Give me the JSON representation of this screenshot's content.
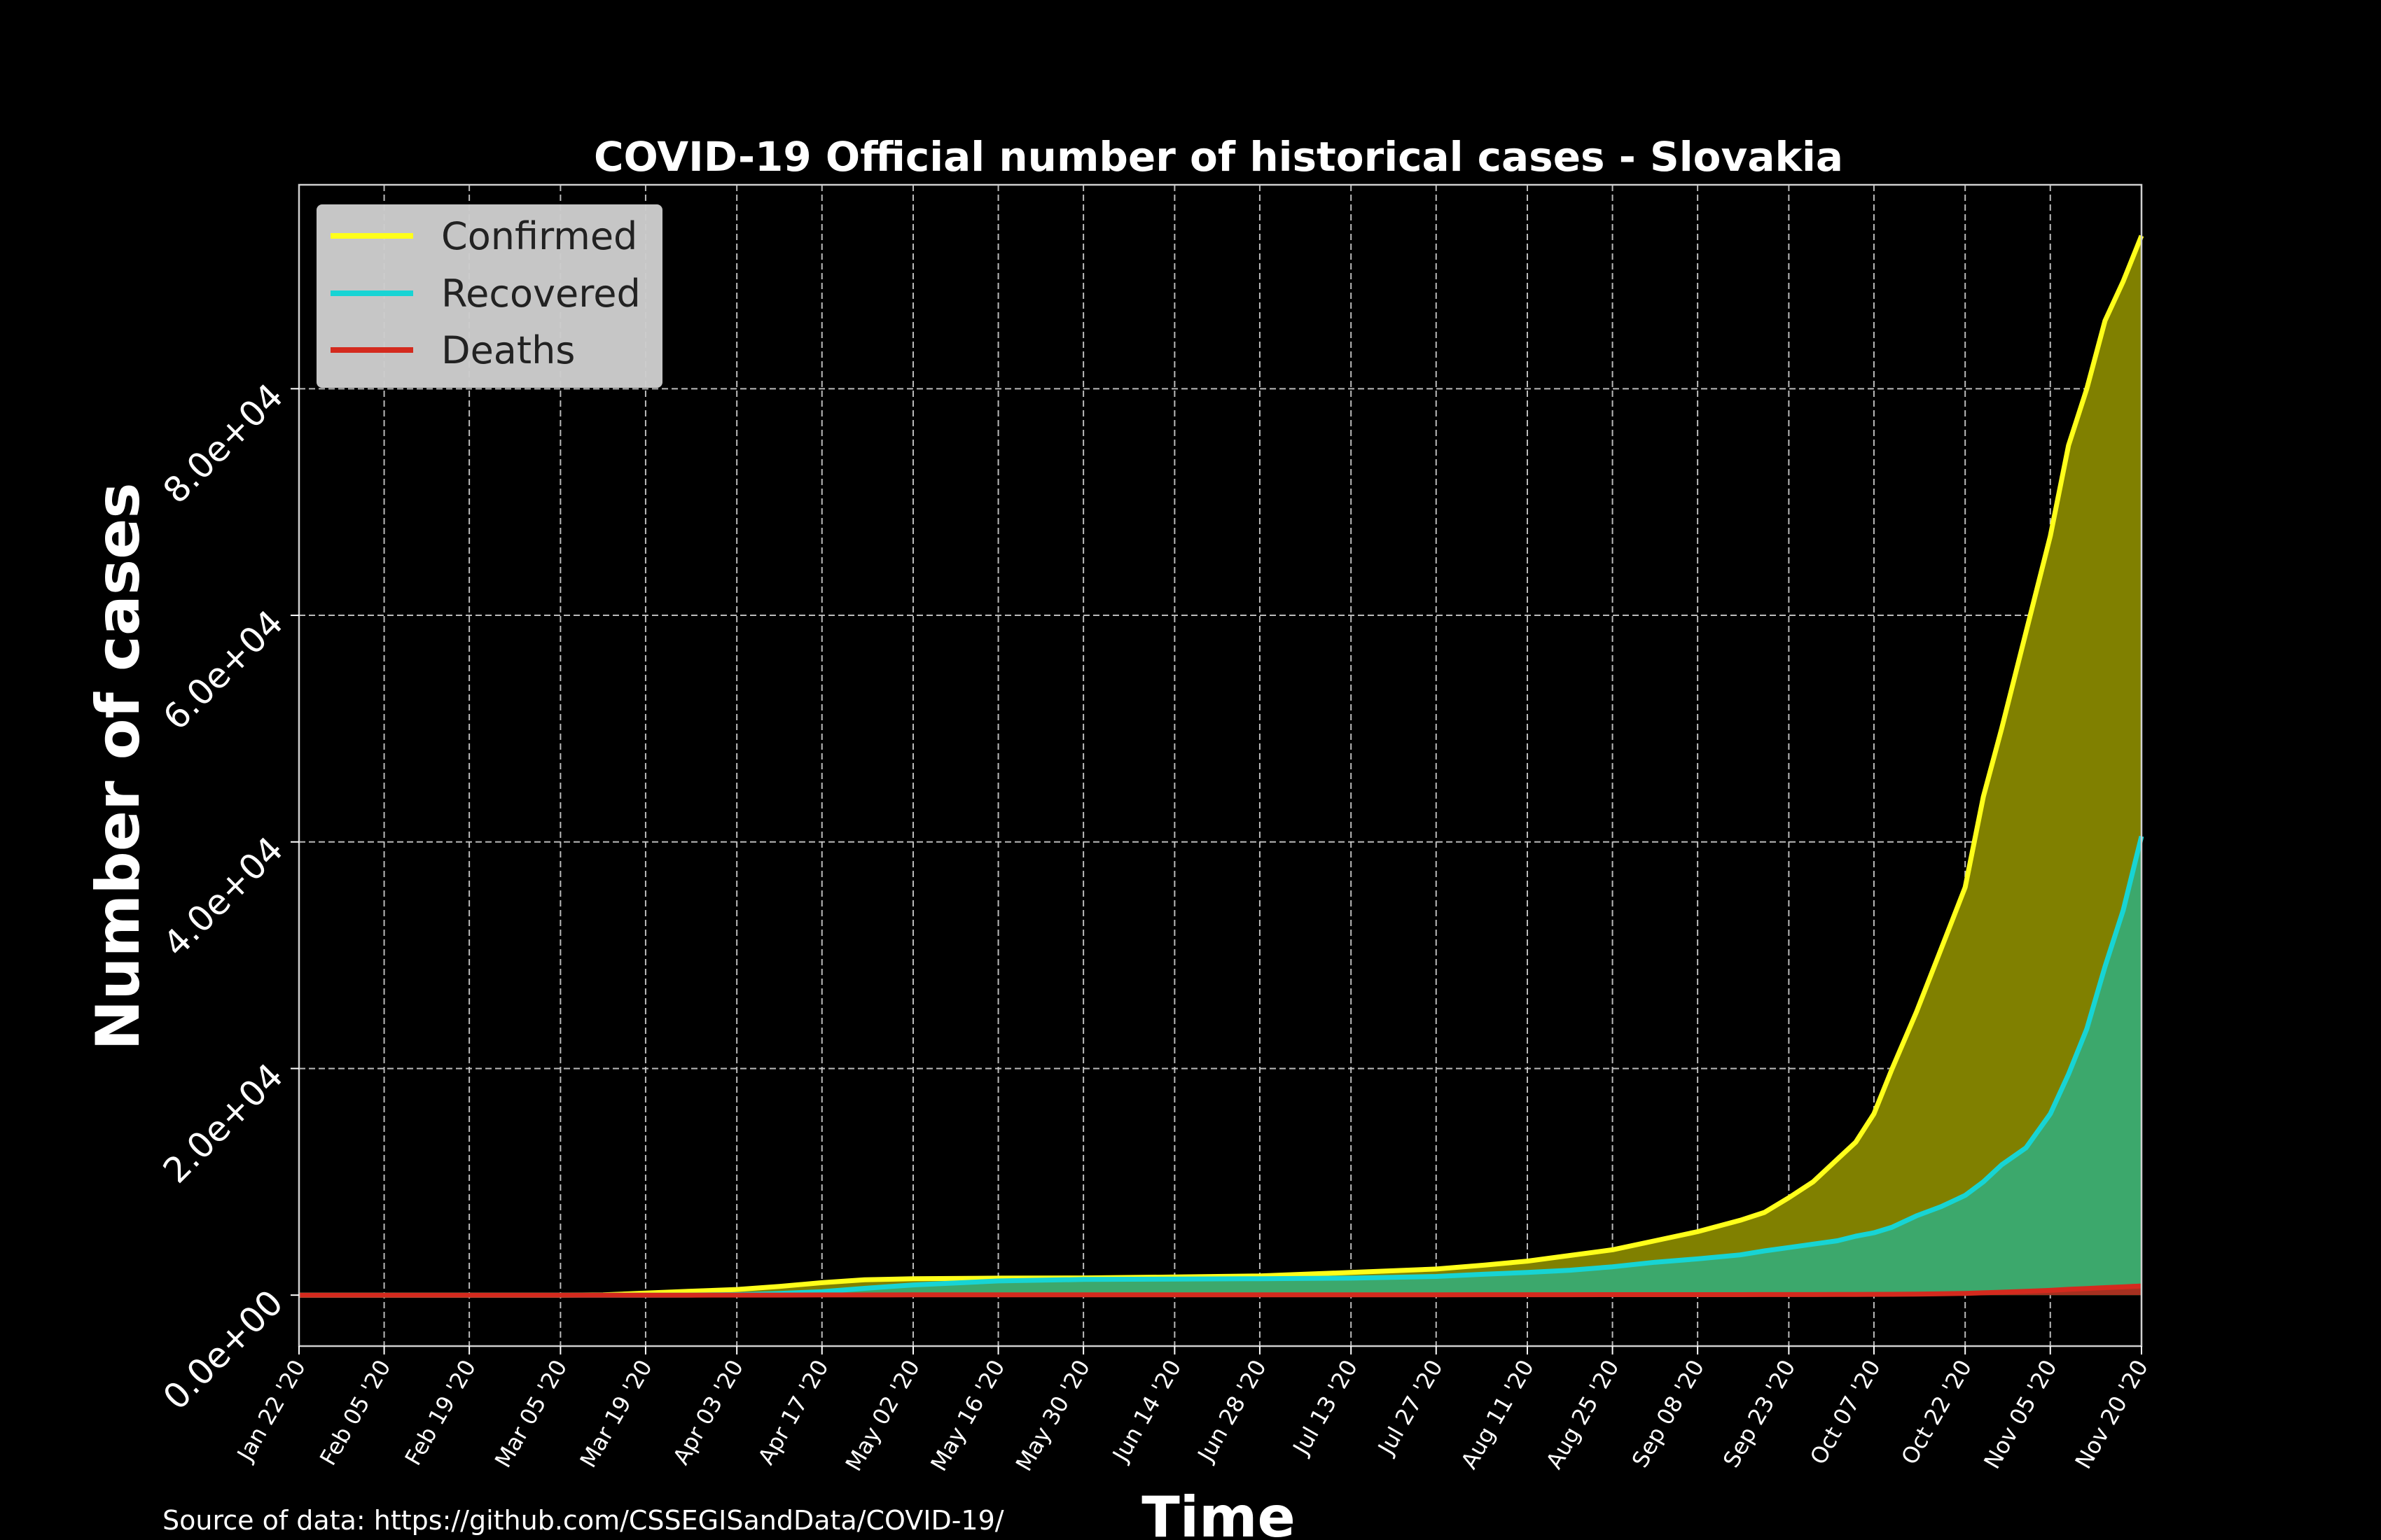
{
  "chart_data": {
    "type": "area",
    "title": "COVID-19 Official number of historical cases - Slovakia",
    "xlabel": "Time",
    "ylabel": "Number of cases",
    "source": "Source of data: https://github.com/CSSEGISandData/COVID-19/",
    "ylim": [
      -4500,
      98000
    ],
    "y_ticks": [
      0,
      20000,
      40000,
      60000,
      80000
    ],
    "y_tick_labels": [
      "0.0e+00",
      "2.0e+04",
      "4.0e+04",
      "6.0e+04",
      "8.0e+04"
    ],
    "x_tick_labels": [
      "Jan 22 '20",
      "Feb 05 '20",
      "Feb 19 '20",
      "Mar 05 '20",
      "Mar 19 '20",
      "Apr 03 '20",
      "Apr 17 '20",
      "May 02 '20",
      "May 16 '20",
      "May 30 '20",
      "Jun 14 '20",
      "Jun 28 '20",
      "Jul 13 '20",
      "Jul 27 '20",
      "Aug 11 '20",
      "Aug 25 '20",
      "Sep 08 '20",
      "Sep 23 '20",
      "Oct 07 '20",
      "Oct 22 '20",
      "Nov 05 '20",
      "Nov 20 '20"
    ],
    "grid": true,
    "legend_position": "top-left",
    "x": [
      "Jan 22 '20",
      "Feb 05 '20",
      "Feb 19 '20",
      "Mar 05 '20",
      "Mar 12 '20",
      "Mar 19 '20",
      "Mar 26 '20",
      "Apr 03 '20",
      "Apr 10 '20",
      "Apr 17 '20",
      "Apr 24 '20",
      "May 02 '20",
      "May 16 '20",
      "May 30 '20",
      "Jun 14 '20",
      "Jun 28 '20",
      "Jul 13 '20",
      "Jul 27 '20",
      "Aug 04 '20",
      "Aug 11 '20",
      "Aug 18 '20",
      "Aug 25 '20",
      "Sep 01 '20",
      "Sep 08 '20",
      "Sep 15 '20",
      "Sep 19 '20",
      "Sep 23 '20",
      "Sep 27 '20",
      "Oct 01 '20",
      "Oct 04 '20",
      "Oct 07 '20",
      "Oct 10 '20",
      "Oct 14 '20",
      "Oct 18 '20",
      "Oct 22 '20",
      "Oct 25 '20",
      "Oct 28 '20",
      "Nov 01 '20",
      "Nov 05 '20",
      "Nov 08 '20",
      "Nov 11 '20",
      "Nov 14 '20",
      "Nov 17 '20",
      "Nov 20 '20"
    ],
    "series": [
      {
        "name": "Confirmed",
        "color": "#ffff1a",
        "fill": "#808000",
        "values": [
          0,
          0,
          0,
          0,
          20,
          180,
          330,
          500,
          770,
          1100,
          1350,
          1450,
          1500,
          1520,
          1600,
          1700,
          2000,
          2300,
          2650,
          3000,
          3500,
          4000,
          4800,
          5600,
          6600,
          7300,
          8600,
          10000,
          12000,
          13500,
          16000,
          20000,
          25000,
          30500,
          36000,
          44000,
          50000,
          58500,
          67000,
          75000,
          80000,
          86000,
          89500,
          93500
        ]
      },
      {
        "name": "Recovered",
        "color": "#17d4d4",
        "fill": "#3ca86c",
        "values": [
          0,
          0,
          0,
          0,
          0,
          0,
          5,
          40,
          150,
          300,
          600,
          900,
          1250,
          1380,
          1420,
          1450,
          1500,
          1650,
          1850,
          2000,
          2200,
          2500,
          2900,
          3200,
          3550,
          3900,
          4200,
          4500,
          4800,
          5200,
          5500,
          6000,
          7000,
          7800,
          8800,
          10000,
          11500,
          13000,
          16000,
          19500,
          23500,
          29000,
          34000,
          40500
        ]
      },
      {
        "name": "Deaths",
        "color": "#d42a1e",
        "fill": "#a63020",
        "values": [
          0,
          0,
          0,
          0,
          0,
          0,
          0,
          2,
          5,
          14,
          18,
          22,
          25,
          28,
          28,
          28,
          28,
          31,
          33,
          36,
          38,
          40,
          40,
          40,
          42,
          45,
          48,
          50,
          56,
          60,
          65,
          75,
          90,
          115,
          150,
          200,
          260,
          340,
          420,
          510,
          580,
          660,
          730,
          810
        ]
      }
    ]
  }
}
